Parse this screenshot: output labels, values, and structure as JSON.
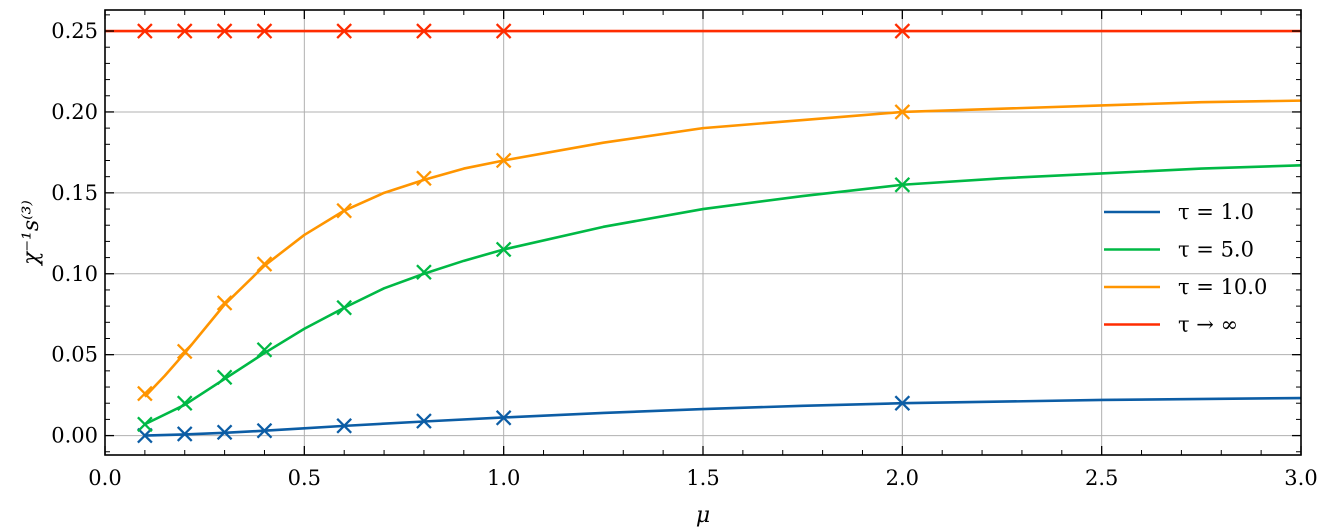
{
  "chart_data": {
    "type": "line",
    "xlabel": "μ",
    "ylabel": "χ⁻¹s⁽³⁾",
    "xlim": [
      0.0,
      3.0
    ],
    "ylim": [
      -0.012,
      0.263
    ],
    "x_ticks": [
      0.0,
      0.5,
      1.0,
      1.5,
      2.0,
      2.5,
      3.0
    ],
    "x_tick_labels": [
      "0.0",
      "0.5",
      "1.0",
      "1.5",
      "2.0",
      "2.5",
      "3.0"
    ],
    "y_ticks": [
      0.0,
      0.05,
      0.1,
      0.15,
      0.2,
      0.25
    ],
    "y_tick_labels": [
      "0.00",
      "0.05",
      "0.10",
      "0.15",
      "0.20",
      "0.25"
    ],
    "grid": true,
    "legend_position": "center-right",
    "series": [
      {
        "name": "τ = 1.0",
        "color": "#0C5DA5",
        "markers": {
          "x": [
            0.1,
            0.2,
            0.3,
            0.4,
            0.6,
            0.8,
            1.0,
            2.0
          ],
          "y": [
            0.0,
            0.001,
            0.002,
            0.003,
            0.006,
            0.009,
            0.011,
            0.02
          ]
        },
        "curve": {
          "x": [
            0.1,
            0.2,
            0.3,
            0.4,
            0.5,
            0.6,
            0.8,
            1.0,
            1.25,
            1.5,
            1.75,
            2.0,
            2.5,
            3.0
          ],
          "y": [
            0.0,
            0.0007,
            0.0017,
            0.003,
            0.0045,
            0.006,
            0.0087,
            0.0112,
            0.014,
            0.0164,
            0.0184,
            0.02,
            0.022,
            0.0232
          ]
        }
      },
      {
        "name": "τ = 5.0",
        "color": "#00B945",
        "markers": {
          "x": [
            0.1,
            0.2,
            0.3,
            0.4,
            0.6,
            0.8,
            1.0,
            2.0
          ],
          "y": [
            0.007,
            0.02,
            0.036,
            0.053,
            0.079,
            0.101,
            0.115,
            0.155
          ]
        },
        "curve": {
          "x": [
            0.1,
            0.2,
            0.3,
            0.4,
            0.5,
            0.6,
            0.7,
            0.8,
            0.9,
            1.0,
            1.25,
            1.5,
            1.75,
            2.0,
            2.25,
            2.5,
            2.75,
            3.0
          ],
          "y": [
            0.007,
            0.019,
            0.035,
            0.051,
            0.066,
            0.079,
            0.091,
            0.1,
            0.108,
            0.115,
            0.129,
            0.14,
            0.148,
            0.155,
            0.159,
            0.162,
            0.165,
            0.167
          ]
        }
      },
      {
        "name": "τ = 10.0",
        "color": "#FF9500",
        "markers": {
          "x": [
            0.1,
            0.2,
            0.3,
            0.4,
            0.6,
            0.8,
            1.0,
            2.0
          ],
          "y": [
            0.026,
            0.052,
            0.082,
            0.106,
            0.139,
            0.159,
            0.17,
            0.2
          ]
        },
        "curve": {
          "x": [
            0.1,
            0.15,
            0.2,
            0.3,
            0.4,
            0.5,
            0.6,
            0.7,
            0.8,
            0.9,
            1.0,
            1.25,
            1.5,
            1.75,
            2.0,
            2.25,
            2.5,
            2.75,
            3.0
          ],
          "y": [
            0.024,
            0.037,
            0.051,
            0.081,
            0.105,
            0.124,
            0.139,
            0.15,
            0.158,
            0.165,
            0.17,
            0.181,
            0.19,
            0.195,
            0.2,
            0.202,
            0.204,
            0.206,
            0.207
          ]
        }
      },
      {
        "name": "τ → ∞",
        "color": "#FF2C00",
        "markers": {
          "x": [
            0.1,
            0.2,
            0.3,
            0.4,
            0.6,
            0.8,
            1.0,
            2.0
          ],
          "y": [
            0.25,
            0.25,
            0.25,
            0.25,
            0.25,
            0.25,
            0.25,
            0.25
          ]
        },
        "curve": {
          "x": [
            0.0,
            3.0
          ],
          "y": [
            0.25,
            0.25
          ]
        }
      }
    ]
  }
}
